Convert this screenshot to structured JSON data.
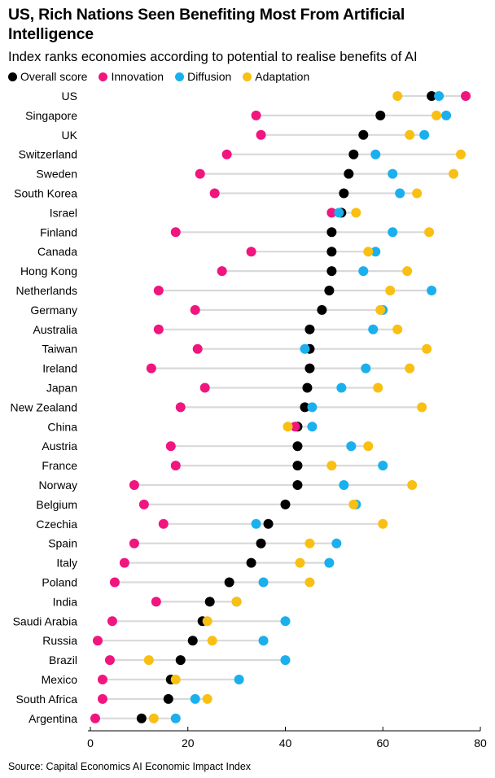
{
  "title": "US, Rich Nations Seen Benefiting Most From Artificial Intelligence",
  "subtitle": "Index ranks economies according to potential to realise benefits of AI",
  "source": "Source: Capital Economics AI Economic Impact Index",
  "chart_data": {
    "type": "scatter",
    "title": "US, Rich Nations Seen Benefiting Most From Artificial Intelligence",
    "subtitle": "Index ranks economies according to potential to realise benefits of AI",
    "xlim": [
      0,
      80
    ],
    "xticks": [
      0,
      20,
      40,
      60,
      80
    ],
    "grid": false,
    "legend_position": "top-left",
    "categories": [
      "US",
      "Singapore",
      "UK",
      "Switzerland",
      "Sweden",
      "South Korea",
      "Israel",
      "Finland",
      "Canada",
      "Hong Kong",
      "Netherlands",
      "Germany",
      "Australia",
      "Taiwan",
      "Ireland",
      "Japan",
      "New Zealand",
      "China",
      "Austria",
      "France",
      "Norway",
      "Belgium",
      "Czechia",
      "Spain",
      "Italy",
      "Poland",
      "India",
      "Saudi Arabia",
      "Russia",
      "Brazil",
      "Mexico",
      "South Africa",
      "Argentina"
    ],
    "series": [
      {
        "name": "Overall score",
        "color": "#000000",
        "values": [
          70,
          59.5,
          56,
          54,
          53,
          52,
          51.5,
          49.5,
          49.5,
          49.5,
          49,
          47.5,
          45,
          45,
          45,
          44.5,
          44,
          42.5,
          42.5,
          42.5,
          42.5,
          40,
          36.5,
          35,
          33,
          28.5,
          24.5,
          23,
          21,
          18.5,
          16.5,
          16,
          10.5
        ]
      },
      {
        "name": "Innovation",
        "color": "#f0157f",
        "values": [
          77,
          34,
          35,
          28,
          22.5,
          25.5,
          49.5,
          17.5,
          33,
          27,
          14,
          21.5,
          14,
          22,
          12.5,
          23.5,
          18.5,
          42,
          16.5,
          17.5,
          9,
          11,
          15,
          9,
          7,
          5,
          13.5,
          4.5,
          1.5,
          4,
          2.5,
          2.5,
          1
        ]
      },
      {
        "name": "Diffusion",
        "color": "#1ab0ee",
        "values": [
          71.5,
          73,
          68.5,
          58.5,
          62,
          63.5,
          51,
          62,
          58.5,
          56,
          70,
          60,
          58,
          44,
          56.5,
          51.5,
          45.5,
          45.5,
          53.5,
          60,
          52,
          54.5,
          34,
          50.5,
          49,
          35.5,
          30,
          40,
          35.5,
          40,
          30.5,
          21.5,
          17.5
        ]
      },
      {
        "name": "Adaptation",
        "color": "#f9bf12",
        "values": [
          63,
          71,
          65.5,
          76,
          74.5,
          67,
          54.5,
          69.5,
          57,
          65,
          61.5,
          59.5,
          63,
          69,
          65.5,
          59,
          68,
          40.5,
          57,
          49.5,
          66,
          54,
          60,
          45,
          43,
          45,
          30,
          24,
          25,
          12,
          17.5,
          24,
          13
        ]
      }
    ]
  }
}
